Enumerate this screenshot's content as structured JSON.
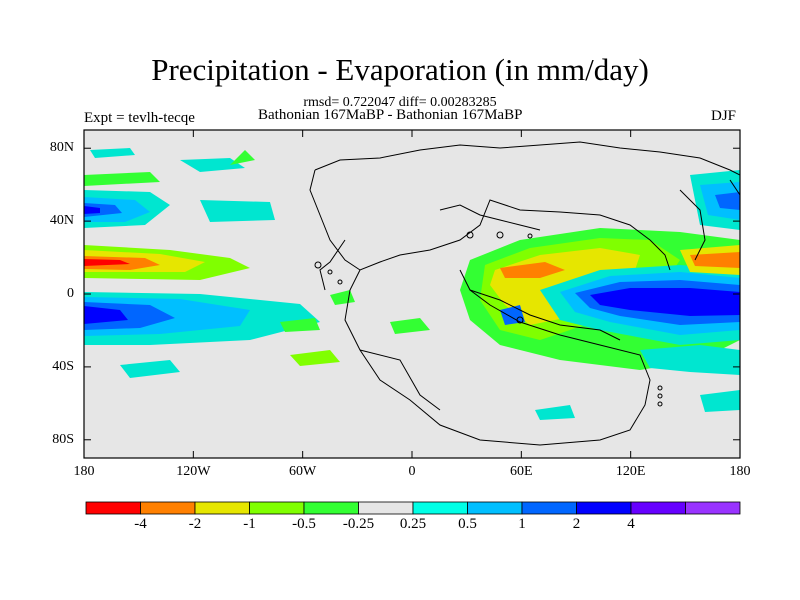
{
  "title": "Precipitation - Evaporation (in mm/day)",
  "stats": "rmsd= 0.722047 diff= 0.00283285",
  "experiment": "Expt = tevlh-tecqe",
  "comparison": "Bathonian 167MaBP - Bathonian 167MaBP",
  "season": "DJF",
  "map": {
    "background_color": "#e6e6e6",
    "latitude_labels": [
      "80N",
      "40N",
      "0",
      "40S",
      "80S"
    ],
    "latitude_values": [
      80,
      40,
      0,
      -40,
      -80
    ],
    "longitude_labels": [
      "180",
      "120W",
      "60W",
      "0",
      "60E",
      "120E",
      "180"
    ],
    "longitude_values": [
      -180,
      -120,
      -60,
      0,
      60,
      120,
      180
    ],
    "lat_range": [
      -90,
      90
    ],
    "lon_range": [
      -180,
      180
    ]
  },
  "colorbar": {
    "colors": [
      "#ff0000",
      "#ff8000",
      "#e6e600",
      "#80ff00",
      "#33ff33",
      "#e6e6e6",
      "#00ffe6",
      "#00bfff",
      "#0066ff",
      "#0000ff",
      "#6600ff",
      "#9933ff"
    ],
    "labels": [
      "-4",
      "-2",
      "-1",
      "-0.5",
      "-0.25",
      "0.25",
      "0.5",
      "1",
      "2",
      "4"
    ]
  }
}
